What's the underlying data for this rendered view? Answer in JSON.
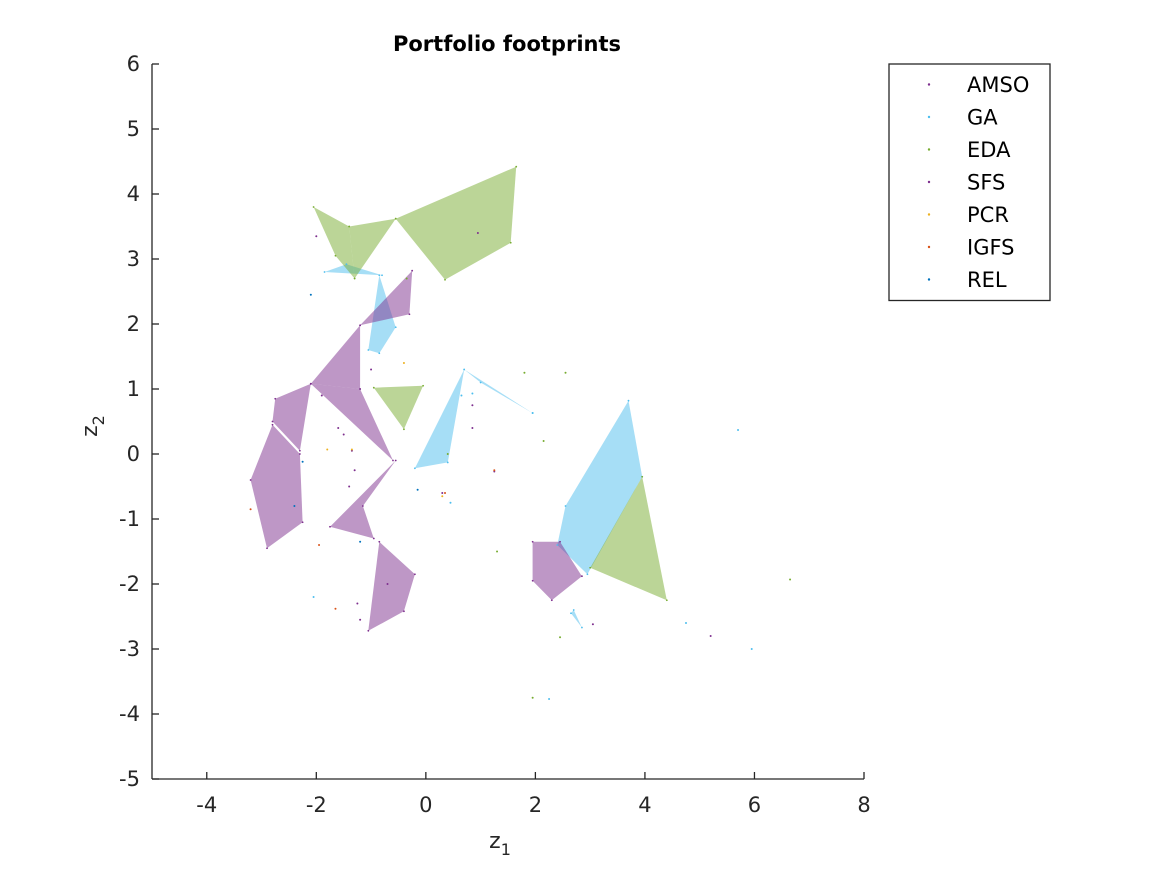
{
  "chart_data": {
    "type": "scatter",
    "title": "Portfolio footprints",
    "xlabel": "z",
    "xlabel_sub": "1",
    "ylabel": "z",
    "ylabel_sub": "2",
    "xlim": [
      -5,
      8
    ],
    "ylim": [
      -5,
      6
    ],
    "xticks": [
      -4,
      -2,
      0,
      2,
      4,
      6,
      8
    ],
    "yticks": [
      -5,
      -4,
      -3,
      -2,
      -1,
      0,
      1,
      2,
      3,
      4,
      5,
      6
    ],
    "grid": false,
    "legend_position": "top-right (outside plot area)",
    "series": [
      {
        "name": "AMSO",
        "color": "#7e2f8e",
        "points": [
          [
            -2.0,
            3.35
          ],
          [
            0.95,
            3.4
          ]
        ]
      },
      {
        "name": "GA",
        "color": "#4dbeee",
        "points": [
          [
            5.7,
            0.37
          ],
          [
            4.75,
            -2.6
          ],
          [
            5.95,
            -3.0
          ],
          [
            2.25,
            -3.77
          ],
          [
            -2.05,
            -2.2
          ],
          [
            0.45,
            -0.75
          ],
          [
            0.65,
            0.9
          ],
          [
            0.85,
            0.93
          ],
          [
            1.95,
            0.63
          ]
        ],
        "footprints": [
          [
            [
              -1.85,
              2.8
            ],
            [
              -1.45,
              2.92
            ],
            [
              -0.8,
              2.75
            ]
          ],
          [
            [
              -0.85,
              2.75
            ],
            [
              -1.05,
              1.6
            ],
            [
              -0.85,
              1.55
            ],
            [
              -0.55,
              1.95
            ]
          ],
          [
            [
              -0.2,
              -0.22
            ],
            [
              0.7,
              1.3
            ],
            [
              0.4,
              -0.13
            ]
          ],
          [
            [
              0.7,
              1.3
            ],
            [
              1.95,
              0.63
            ],
            [
              1.0,
              1.1
            ]
          ],
          [
            [
              2.55,
              -0.8
            ],
            [
              3.7,
              0.82
            ],
            [
              3.95,
              -0.35
            ],
            [
              2.95,
              -1.85
            ],
            [
              2.4,
              -1.4
            ]
          ],
          [
            [
              2.65,
              -2.45
            ],
            [
              2.85,
              -2.67
            ],
            [
              2.7,
              -2.4
            ]
          ]
        ]
      },
      {
        "name": "EDA",
        "color": "#77ac30",
        "points": [
          [
            6.65,
            -1.93
          ],
          [
            1.8,
            1.25
          ],
          [
            2.55,
            1.25
          ],
          [
            2.15,
            0.2
          ],
          [
            2.45,
            -2.82
          ],
          [
            1.95,
            -3.75
          ],
          [
            1.3,
            -1.5
          ],
          [
            0.4,
            0.0
          ],
          [
            -0.35,
            2.7
          ]
        ],
        "footprints": [
          [
            [
              -2.05,
              3.8
            ],
            [
              -1.4,
              3.5
            ],
            [
              -1.3,
              2.7
            ],
            [
              -1.65,
              3.05
            ]
          ],
          [
            [
              -1.4,
              3.5
            ],
            [
              -0.55,
              3.62
            ],
            [
              -1.3,
              2.7
            ]
          ],
          [
            [
              -0.55,
              3.62
            ],
            [
              1.65,
              4.42
            ],
            [
              1.55,
              3.25
            ],
            [
              0.35,
              2.68
            ]
          ],
          [
            [
              -0.95,
              1.02
            ],
            [
              -0.05,
              1.05
            ],
            [
              -0.4,
              0.38
            ]
          ],
          [
            [
              3.0,
              -1.75
            ],
            [
              3.95,
              -0.35
            ],
            [
              4.4,
              -2.25
            ]
          ]
        ]
      },
      {
        "name": "SFS",
        "color": "#7e2f8e",
        "points": [
          [
            -1.9,
            0.9
          ],
          [
            -1.0,
            1.3
          ],
          [
            -1.4,
            -0.5
          ],
          [
            -1.6,
            0.4
          ],
          [
            -1.5,
            0.3
          ],
          [
            -1.35,
            0.05
          ],
          [
            -1.3,
            -0.25
          ],
          [
            -0.7,
            -2.0
          ],
          [
            -1.25,
            -2.3
          ],
          [
            -1.2,
            -2.55
          ],
          [
            0.85,
            0.75
          ],
          [
            0.85,
            0.4
          ],
          [
            1.25,
            -0.27
          ],
          [
            3.05,
            -2.62
          ],
          [
            5.2,
            -2.8
          ],
          [
            0.3,
            -0.6
          ]
        ],
        "footprints": [
          [
            [
              -1.2,
              1.98
            ],
            [
              -0.25,
              2.82
            ],
            [
              -0.3,
              2.15
            ]
          ],
          [
            [
              -2.1,
              1.08
            ],
            [
              -1.2,
              1.98
            ],
            [
              -1.2,
              1.0
            ]
          ],
          [
            [
              -2.1,
              1.08
            ],
            [
              -1.2,
              1.0
            ],
            [
              -0.6,
              -0.1
            ]
          ],
          [
            [
              -2.75,
              0.85
            ],
            [
              -2.1,
              1.08
            ],
            [
              -2.3,
              0.05
            ],
            [
              -2.8,
              0.5
            ]
          ],
          [
            [
              -2.8,
              0.45
            ],
            [
              -2.3,
              0.0
            ],
            [
              -2.25,
              -1.05
            ],
            [
              -2.9,
              -1.45
            ],
            [
              -3.2,
              -0.4
            ]
          ],
          [
            [
              -1.75,
              -1.12
            ],
            [
              -0.55,
              -0.1
            ],
            [
              -1.15,
              -0.8
            ],
            [
              -0.95,
              -1.3
            ]
          ],
          [
            [
              -1.05,
              -2.72
            ],
            [
              -0.85,
              -1.35
            ],
            [
              -0.2,
              -1.85
            ],
            [
              -0.4,
              -2.42
            ]
          ],
          [
            [
              1.95,
              -1.35
            ],
            [
              2.45,
              -1.35
            ],
            [
              2.85,
              -1.88
            ],
            [
              2.3,
              -2.25
            ],
            [
              1.95,
              -1.95
            ]
          ]
        ]
      },
      {
        "name": "PCR",
        "color": "#edb120",
        "points": [
          [
            -1.8,
            0.07
          ],
          [
            -1.35,
            0.07
          ],
          [
            0.3,
            -0.65
          ],
          [
            -0.4,
            1.4
          ]
        ]
      },
      {
        "name": "IGFS",
        "color": "#d95319",
        "points": [
          [
            -1.95,
            -1.4
          ],
          [
            -1.65,
            -2.38
          ],
          [
            -3.2,
            -0.85
          ],
          [
            1.25,
            -0.25
          ],
          [
            0.35,
            -0.6
          ]
        ]
      },
      {
        "name": "REL",
        "color": "#0072bd",
        "points": [
          [
            -2.1,
            2.45
          ],
          [
            -2.25,
            -0.12
          ],
          [
            -2.4,
            -0.8
          ],
          [
            -0.15,
            -0.55
          ],
          [
            -1.2,
            -1.35
          ]
        ]
      }
    ]
  }
}
